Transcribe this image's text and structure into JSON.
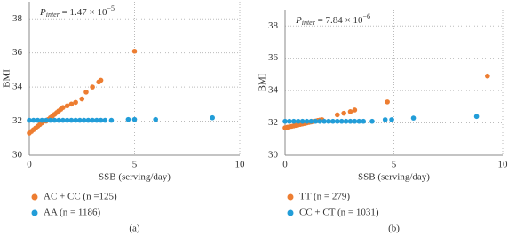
{
  "chart_data": [
    {
      "type": "scatter",
      "caption": "(a)",
      "x_label": "SSB (serving/day)",
      "y_label": "BMI",
      "annotation": {
        "symbol": "P",
        "subscript": "inter",
        "text": " = 1.47 × 10",
        "exponent": "−5"
      },
      "xlim": [
        0,
        10
      ],
      "xticks": [
        0,
        5,
        10
      ],
      "ylim": [
        30,
        39
      ],
      "yticks": [
        30,
        32,
        34,
        36,
        38
      ],
      "grid": true,
      "series": [
        {
          "name": "AC + CC (n =125)",
          "color": "#ed7d31",
          "x": [
            0,
            0.1,
            0.2,
            0.3,
            0.4,
            0.5,
            0.6,
            0.7,
            0.8,
            0.9,
            1.0,
            1.1,
            1.2,
            1.3,
            1.4,
            1.5,
            1.6,
            1.8,
            2.0,
            2.2,
            2.5,
            2.7,
            3.0,
            3.3,
            3.4,
            5.0
          ],
          "values": [
            31.3,
            31.4,
            31.5,
            31.6,
            31.7,
            31.8,
            31.9,
            32.0,
            32.0,
            32.1,
            32.2,
            32.3,
            32.4,
            32.5,
            32.6,
            32.7,
            32.8,
            32.9,
            33.0,
            33.1,
            33.3,
            33.7,
            34.0,
            34.3,
            34.4,
            36.1
          ]
        },
        {
          "name": "AA (n = 1186)",
          "color": "#229dd8",
          "x": [
            0,
            0.2,
            0.4,
            0.6,
            0.8,
            1.0,
            1.2,
            1.4,
            1.6,
            1.8,
            2.0,
            2.2,
            2.4,
            2.6,
            2.8,
            3.0,
            3.2,
            3.4,
            3.6,
            3.9,
            4.7,
            5.0,
            6.0,
            8.7
          ],
          "values": [
            32.05,
            32.05,
            32.05,
            32.05,
            32.05,
            32.05,
            32.05,
            32.05,
            32.05,
            32.05,
            32.05,
            32.05,
            32.05,
            32.05,
            32.05,
            32.05,
            32.05,
            32.05,
            32.05,
            32.05,
            32.1,
            32.1,
            32.1,
            32.2
          ]
        }
      ]
    },
    {
      "type": "scatter",
      "caption": "(b)",
      "x_label": "SSB (serving/day)",
      "y_label": "BMI",
      "annotation": {
        "symbol": "P",
        "subscript": "inter",
        "text": " = 7.84 × 10",
        "exponent": "−6"
      },
      "xlim": [
        0,
        10
      ],
      "xticks": [
        0,
        5,
        10
      ],
      "ylim": [
        30,
        39
      ],
      "yticks": [
        30,
        32,
        34,
        36,
        38
      ],
      "grid": true,
      "series": [
        {
          "name": "TT (n = 279)",
          "color": "#ed7d31",
          "x": [
            0,
            0.1,
            0.2,
            0.3,
            0.4,
            0.5,
            0.6,
            0.7,
            0.8,
            0.9,
            1.0,
            1.1,
            1.2,
            1.3,
            1.4,
            1.5,
            1.6,
            1.7,
            2.4,
            2.7,
            3.0,
            3.2,
            4.7,
            9.3
          ],
          "values": [
            31.7,
            31.73,
            31.76,
            31.79,
            31.82,
            31.85,
            31.88,
            31.91,
            31.94,
            31.97,
            32.0,
            32.03,
            32.06,
            32.09,
            32.12,
            32.15,
            32.18,
            32.2,
            32.5,
            32.6,
            32.7,
            32.8,
            33.3,
            34.9
          ]
        },
        {
          "name": "CC + CT (n = 1031)",
          "color": "#229dd8",
          "x": [
            0,
            0.2,
            0.4,
            0.6,
            0.8,
            1.0,
            1.2,
            1.4,
            1.6,
            1.8,
            2.0,
            2.2,
            2.4,
            2.6,
            2.8,
            3.0,
            3.2,
            3.4,
            3.6,
            4.0,
            4.6,
            4.9,
            5.9,
            8.8
          ],
          "values": [
            32.1,
            32.1,
            32.1,
            32.1,
            32.1,
            32.1,
            32.1,
            32.1,
            32.1,
            32.1,
            32.1,
            32.1,
            32.1,
            32.1,
            32.1,
            32.1,
            32.1,
            32.1,
            32.1,
            32.1,
            32.2,
            32.2,
            32.3,
            32.4
          ]
        }
      ]
    }
  ]
}
